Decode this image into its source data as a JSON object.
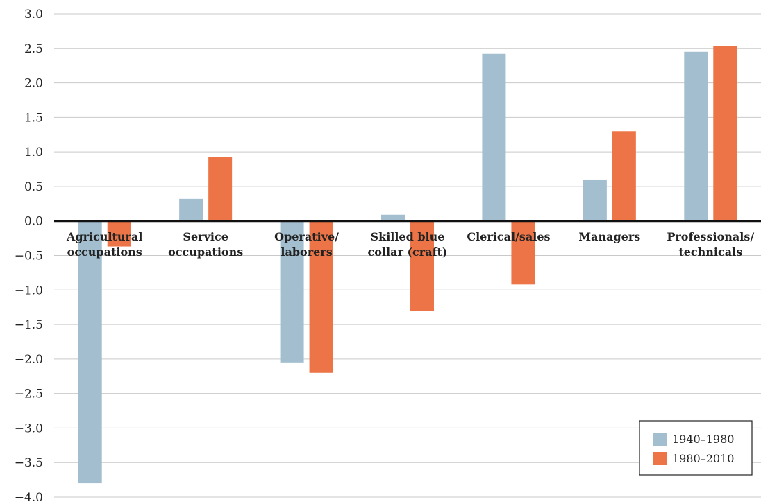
{
  "chart_data": {
    "type": "bar",
    "title": "",
    "xlabel": "",
    "ylabel": "",
    "ylim": [
      -4.0,
      3.0
    ],
    "yticks": [
      3.0,
      2.5,
      2.0,
      1.5,
      1.0,
      0.5,
      0.0,
      -0.5,
      -1.0,
      -1.5,
      -2.0,
      -2.5,
      -3.0,
      -3.5,
      -4.0
    ],
    "ytick_labels": [
      "3.0",
      "2.5",
      "2.0",
      "1.5",
      "1.0",
      "0.5",
      "0.0",
      "−0.5",
      "−1.0",
      "−1.5",
      "−2.0",
      "−2.5",
      "−3.0",
      "−3.5",
      "−4.0"
    ],
    "grid": true,
    "legend_position": "bottom-right",
    "categories": [
      [
        "Agricultural",
        "occupations"
      ],
      [
        "Service",
        "occupations"
      ],
      [
        "Operative/",
        "laborers"
      ],
      [
        "Skilled blue",
        "collar (craft)"
      ],
      [
        "Clerical/sales"
      ],
      [
        "Managers"
      ],
      [
        "Professionals/",
        "technicals"
      ]
    ],
    "series": [
      {
        "name": "1940–1980",
        "color": "#a3bfcf",
        "values": [
          -3.8,
          0.32,
          -2.05,
          0.09,
          2.42,
          0.6,
          2.45
        ]
      },
      {
        "name": "1980–2010",
        "color": "#ed7446",
        "values": [
          -0.37,
          0.93,
          -2.2,
          -1.3,
          -0.92,
          1.3,
          2.53
        ]
      }
    ]
  }
}
